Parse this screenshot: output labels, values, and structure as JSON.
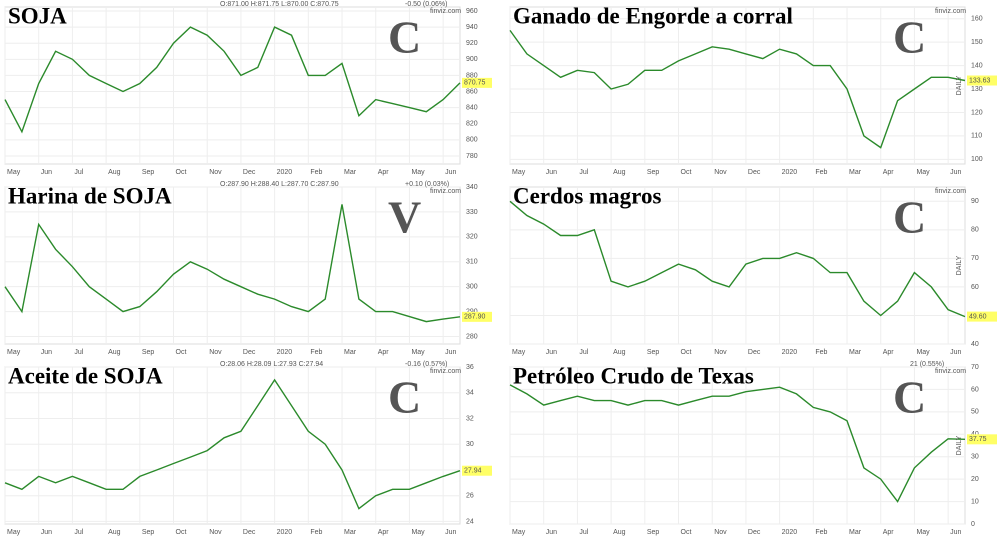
{
  "chart_data": [
    {
      "type": "line",
      "title": "SOJA",
      "signal": "C",
      "signal_color": "#2e9e3e",
      "ohlc": "O:871.00 H:871.75 L:870.00 C:870.75",
      "change": "-0.50 (0.06%)",
      "change_color": "#d62728",
      "source": "finviz.com",
      "last_label": "870.75",
      "color": "#2b8a2b",
      "categories": [
        "May",
        null,
        "Jun",
        null,
        "Jul",
        null,
        "Aug",
        null,
        "Sep",
        null,
        "Oct",
        null,
        "Nov",
        null,
        "Dec",
        null,
        "2020",
        null,
        "Feb",
        null,
        "Mar",
        null,
        "Apr",
        null,
        "May",
        null,
        "Jun",
        null
      ],
      "values": [
        850,
        810,
        870,
        910,
        900,
        880,
        870,
        860,
        870,
        890,
        920,
        940,
        930,
        910,
        880,
        890,
        940,
        930,
        880,
        880,
        895,
        830,
        850,
        845,
        840,
        835,
        850,
        870.75
      ],
      "ylim": [
        770,
        965
      ],
      "yticks": [
        780,
        800,
        820,
        840,
        860,
        880,
        900,
        920,
        940,
        960
      ],
      "grid": true
    },
    {
      "type": "line",
      "title": "Ganado de Engorde a corral",
      "signal": "C",
      "signal_color": "#2e9e3e",
      "axis_label": "DAILY",
      "source": "finviz.com",
      "last_label": "133.63",
      "color": "#2b8a2b",
      "categories": [
        "May",
        null,
        "Jun",
        null,
        "Jul",
        null,
        "Aug",
        null,
        "Sep",
        null,
        "Oct",
        null,
        "Nov",
        null,
        "Dec",
        null,
        "2020",
        null,
        "Feb",
        null,
        "Mar",
        null,
        "Apr",
        null,
        "May",
        null,
        "Jun",
        null
      ],
      "values": [
        155,
        145,
        140,
        135,
        138,
        137,
        130,
        132,
        138,
        138,
        142,
        145,
        148,
        147,
        145,
        143,
        147,
        145,
        140,
        140,
        130,
        110,
        105,
        125,
        130,
        135,
        135,
        133.63
      ],
      "ylim": [
        98,
        165
      ],
      "yticks": [
        100,
        110,
        120,
        130,
        140,
        150,
        160
      ],
      "grid": true
    },
    {
      "type": "line",
      "title": "Harina de SOJA",
      "signal": "V",
      "signal_color": "#e8141b",
      "ohlc": "O:287.90 H:288.40 L:287.70 C:287.90",
      "change": "+0.10 (0.03%)",
      "change_color": "#2ca02c",
      "source": "finviz.com",
      "last_label": "287.90",
      "color": "#2b8a2b",
      "categories": [
        "May",
        null,
        "Jun",
        null,
        "Jul",
        null,
        "Aug",
        null,
        "Sep",
        null,
        "Oct",
        null,
        "Nov",
        null,
        "Dec",
        null,
        "2020",
        null,
        "Feb",
        null,
        "Mar",
        null,
        "Apr",
        null,
        "May",
        null,
        "Jun",
        null
      ],
      "values": [
        300,
        290,
        325,
        315,
        308,
        300,
        295,
        290,
        292,
        298,
        305,
        310,
        307,
        303,
        300,
        297,
        295,
        292,
        290,
        295,
        333,
        295,
        290,
        290,
        288,
        286,
        287,
        287.9
      ],
      "ylim": [
        277,
        340
      ],
      "yticks": [
        280,
        290,
        300,
        310,
        320,
        330,
        340
      ],
      "grid": true
    },
    {
      "type": "line",
      "title": "Cerdos magros",
      "signal": "C",
      "signal_color": "#2e9e3e",
      "axis_label": "DAILY",
      "source": "finviz.com",
      "last_label": "49.60",
      "color": "#2b8a2b",
      "categories": [
        "May",
        null,
        "Jun",
        null,
        "Jul",
        null,
        "Aug",
        null,
        "Sep",
        null,
        "Oct",
        null,
        "Nov",
        null,
        "Dec",
        null,
        "2020",
        null,
        "Feb",
        null,
        "Mar",
        null,
        "Apr",
        null,
        "May",
        null,
        "Jun",
        null
      ],
      "values": [
        90,
        85,
        82,
        78,
        78,
        80,
        62,
        60,
        62,
        65,
        68,
        66,
        62,
        60,
        68,
        70,
        70,
        72,
        70,
        65,
        65,
        55,
        50,
        55,
        65,
        60,
        52,
        49.6
      ],
      "ylim": [
        40,
        95
      ],
      "yticks": [
        40,
        50,
        60,
        70,
        80,
        90
      ],
      "grid": true
    },
    {
      "type": "line",
      "title": "Aceite de SOJA",
      "signal": "C",
      "signal_color": "#2e9e3e",
      "ohlc": "O:28.06 H:28.09 L:27.93 C:27.94",
      "change": "-0.16 (0.57%)",
      "change_color": "#d62728",
      "source": "finviz.com",
      "last_label": "27.94",
      "color": "#2b8a2b",
      "categories": [
        "May",
        null,
        "Jun",
        null,
        "Jul",
        null,
        "Aug",
        null,
        "Sep",
        null,
        "Oct",
        null,
        "Nov",
        null,
        "Dec",
        null,
        "2020",
        null,
        "Feb",
        null,
        "Mar",
        null,
        "Apr",
        null,
        "May",
        null,
        "Jun",
        null
      ],
      "values": [
        27,
        26.5,
        27.5,
        27,
        27.5,
        27,
        26.5,
        26.5,
        27.5,
        28,
        28.5,
        29,
        29.5,
        30.5,
        31,
        33,
        35,
        33,
        31,
        30,
        28,
        25,
        26,
        26.5,
        26.5,
        27,
        27.5,
        27.94
      ],
      "ylim": [
        23.8,
        36
      ],
      "yticks": [
        24,
        26,
        28,
        30,
        32,
        34,
        36
      ],
      "grid": true
    },
    {
      "type": "line",
      "title": "Petróleo Crudo de Texas",
      "signal": "C",
      "signal_color": "#2e9e3e",
      "axis_label": "DAILY",
      "change": "21 (0.55%)",
      "change_color": "#2ca02c",
      "source": "finviz.com",
      "last_label": "37.75",
      "color": "#2b8a2b",
      "categories": [
        "May",
        null,
        "Jun",
        null,
        "Jul",
        null,
        "Aug",
        null,
        "Sep",
        null,
        "Oct",
        null,
        "Nov",
        null,
        "Dec",
        null,
        "2020",
        null,
        "Feb",
        null,
        "Mar",
        null,
        "Apr",
        null,
        "May",
        null,
        "Jun",
        null
      ],
      "values": [
        62,
        58,
        53,
        55,
        57,
        55,
        55,
        53,
        55,
        55,
        53,
        55,
        57,
        57,
        59,
        60,
        61,
        58,
        52,
        50,
        46,
        25,
        20,
        10,
        25,
        32,
        38,
        37.75
      ],
      "ylim": [
        0,
        70
      ],
      "yticks": [
        0,
        10,
        20,
        30,
        40,
        50,
        60,
        70
      ],
      "grid": true
    }
  ]
}
